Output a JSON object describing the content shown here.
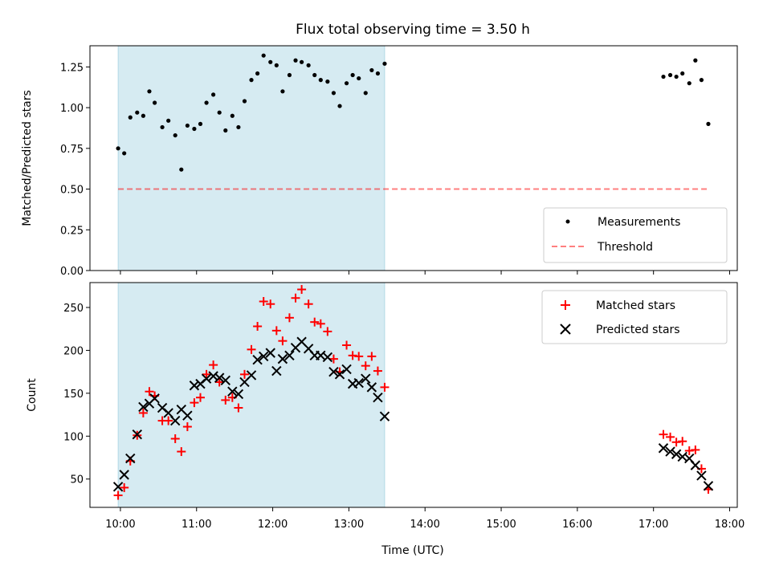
{
  "chart_data": {
    "type": "scatter",
    "title": "Flux total observing time = 3.50 h",
    "xlabel": "Time (UTC)",
    "x_unit": "hours UTC",
    "xlim": [
      9.6,
      18.1
    ],
    "x_ticks": [
      10,
      11,
      12,
      13,
      14,
      15,
      16,
      17,
      18
    ],
    "x_tick_labels": [
      "10:00",
      "11:00",
      "12:00",
      "13:00",
      "14:00",
      "15:00",
      "16:00",
      "17:00",
      "18:00"
    ],
    "shaded_span": [
      9.97,
      13.47
    ],
    "top": {
      "ylabel": "Matched/Predicted stars",
      "ylim": [
        0,
        1.38
      ],
      "y_ticks": [
        0,
        0.25,
        0.5,
        0.75,
        1.0,
        1.25
      ],
      "y_tick_labels": [
        "0.00",
        "0.25",
        "0.50",
        "0.75",
        "1.00",
        "1.25"
      ],
      "legend": [
        "Measurements",
        "Threshold"
      ],
      "threshold": {
        "value": 0.5,
        "x": [
          9.97,
          17.72
        ]
      },
      "measurements": {
        "x": [
          9.97,
          10.05,
          10.13,
          10.22,
          10.3,
          10.38,
          10.45,
          10.55,
          10.63,
          10.72,
          10.8,
          10.88,
          10.97,
          11.05,
          11.13,
          11.22,
          11.3,
          11.38,
          11.47,
          11.55,
          11.63,
          11.72,
          11.8,
          11.88,
          11.97,
          12.05,
          12.13,
          12.22,
          12.3,
          12.38,
          12.47,
          12.55,
          12.63,
          12.72,
          12.8,
          12.88,
          12.97,
          13.05,
          13.13,
          13.22,
          13.3,
          13.38,
          13.47,
          17.13,
          17.22,
          17.3,
          17.38,
          17.47,
          17.55,
          17.63,
          17.72
        ],
        "y": [
          0.75,
          0.72,
          0.94,
          0.97,
          0.95,
          1.1,
          1.03,
          0.88,
          0.92,
          0.83,
          0.62,
          0.89,
          0.87,
          0.9,
          1.03,
          1.08,
          0.97,
          0.86,
          0.95,
          0.88,
          1.04,
          1.17,
          1.21,
          1.32,
          1.28,
          1.26,
          1.1,
          1.2,
          1.29,
          1.28,
          1.26,
          1.2,
          1.17,
          1.16,
          1.09,
          1.01,
          1.15,
          1.2,
          1.18,
          1.09,
          1.23,
          1.21,
          1.27,
          1.19,
          1.2,
          1.19,
          1.21,
          1.15,
          1.29,
          1.17,
          0.9
        ]
      }
    },
    "bottom": {
      "ylabel": "Count",
      "ylim": [
        17,
        279
      ],
      "y_ticks": [
        50,
        100,
        150,
        200,
        250
      ],
      "y_tick_labels": [
        "50",
        "100",
        "150",
        "200",
        "250"
      ],
      "legend": [
        "Matched stars",
        "Predicted stars"
      ],
      "matched": {
        "x": [
          9.97,
          10.05,
          10.13,
          10.22,
          10.3,
          10.38,
          10.45,
          10.55,
          10.63,
          10.72,
          10.8,
          10.88,
          10.97,
          11.05,
          11.13,
          11.22,
          11.3,
          11.38,
          11.47,
          11.55,
          11.63,
          11.72,
          11.8,
          11.88,
          11.97,
          12.05,
          12.13,
          12.22,
          12.3,
          12.38,
          12.47,
          12.55,
          12.63,
          12.72,
          12.8,
          12.88,
          12.97,
          13.05,
          13.13,
          13.22,
          13.3,
          13.38,
          13.47,
          17.13,
          17.22,
          17.3,
          17.38,
          17.47,
          17.55,
          17.63,
          17.72
        ],
        "y": [
          31,
          40,
          71,
          101,
          127,
          152,
          147,
          118,
          118,
          97,
          82,
          111,
          139,
          145,
          172,
          183,
          163,
          142,
          145,
          133,
          172,
          201,
          228,
          257,
          254,
          223,
          211,
          238,
          261,
          271,
          254,
          233,
          231,
          222,
          190,
          175,
          206,
          194,
          193,
          182,
          193,
          176,
          157,
          102,
          99,
          93,
          94,
          83,
          84,
          62,
          38
        ]
      },
      "predicted": {
        "x": [
          9.97,
          10.05,
          10.13,
          10.22,
          10.3,
          10.38,
          10.45,
          10.55,
          10.63,
          10.72,
          10.8,
          10.88,
          10.97,
          11.05,
          11.13,
          11.22,
          11.3,
          11.38,
          11.47,
          11.55,
          11.63,
          11.72,
          11.8,
          11.88,
          11.97,
          12.05,
          12.13,
          12.22,
          12.3,
          12.38,
          12.47,
          12.55,
          12.63,
          12.72,
          12.8,
          12.88,
          12.97,
          13.05,
          13.13,
          13.22,
          13.3,
          13.38,
          13.47,
          17.13,
          17.22,
          17.3,
          17.38,
          17.47,
          17.55,
          17.63,
          17.72
        ],
        "y": [
          41,
          55,
          74,
          102,
          134,
          138,
          144,
          133,
          127,
          118,
          131,
          124,
          159,
          161,
          167,
          170,
          168,
          165,
          152,
          149,
          163,
          171,
          189,
          193,
          197,
          176,
          190,
          194,
          203,
          210,
          202,
          194,
          194,
          192,
          175,
          172,
          178,
          161,
          162,
          167,
          157,
          145,
          123,
          86,
          82,
          79,
          76,
          74,
          66,
          54,
          42
        ]
      }
    },
    "colors": {
      "shade": "#add8e6",
      "measurement": "#000000",
      "threshold": "#ff0000",
      "matched": "#ff0000",
      "predicted": "#000000"
    }
  }
}
